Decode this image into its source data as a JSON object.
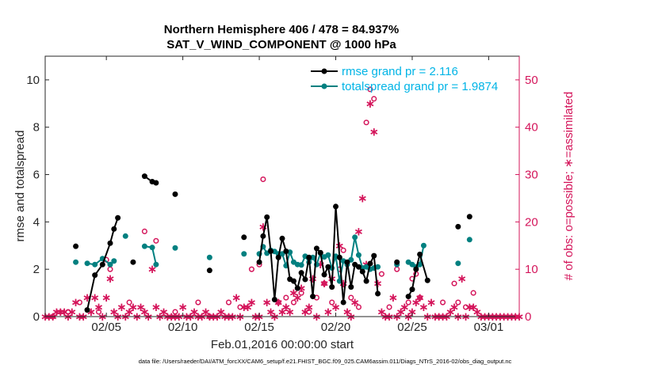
{
  "chart_data": {
    "type": "line",
    "title": "Northern Hemisphere 406 / 478 = 84.937%",
    "subtitle": "SAT_V_WIND_COMPONENT @ 1000 hPa",
    "xlabel": "Feb.01,2016 00:00:00 start",
    "ylabel": "rmse and totalspread",
    "y2label": "# of obs: o=possible; ∗=assimilated",
    "xlim": [
      1,
      32
    ],
    "ylim": [
      0,
      11
    ],
    "y2lim": [
      0,
      55
    ],
    "x_ticks": [
      5,
      10,
      15,
      20,
      25,
      30
    ],
    "x_tick_labels": [
      "02/05",
      "02/10",
      "02/15",
      "02/20",
      "02/25",
      "03/01"
    ],
    "y_ticks": [
      0,
      2,
      4,
      6,
      8,
      10
    ],
    "y2_ticks": [
      0,
      10,
      20,
      30,
      40,
      50
    ],
    "legend_position": "top-right",
    "footer": "data file: /Users/raeder/DAI/ATM_forcXX/CAM6_setup/f.e21.FHIST_BGC.f09_025.CAM6assim.011/Diags_NTrS_2016-02/obs_diag_output.nc",
    "colors": {
      "rmse": "#000000",
      "spread": "#008080",
      "obs": "#d4145a",
      "legend_text": "#00b4e6"
    },
    "series": [
      {
        "name": "rmse",
        "legend": "rmse grand pr = 2.116",
        "axis": "left",
        "x": [
          3.0,
          3.75,
          4.25,
          4.75,
          5.25,
          5.5,
          5.75,
          6.75,
          7.5,
          8.0,
          8.25,
          9.5,
          11.75,
          14.0,
          15.0,
          15.25,
          15.5,
          15.75,
          16.0,
          16.25,
          16.5,
          16.75,
          17.0,
          17.25,
          17.5,
          17.75,
          18.0,
          18.25,
          18.5,
          18.75,
          19.0,
          19.25,
          19.5,
          19.75,
          20.0,
          20.25,
          20.5,
          20.75,
          21.0,
          21.25,
          21.5,
          21.75,
          22.0,
          22.25,
          22.5,
          22.75,
          24.0,
          24.75,
          25.0,
          25.25,
          25.5,
          26.0,
          28.0,
          28.75
        ],
        "y": [
          2.97,
          0.28,
          1.75,
          2.2,
          3.1,
          3.7,
          4.17,
          2.3,
          5.93,
          5.7,
          5.65,
          5.17,
          1.95,
          3.35,
          2.3,
          3.4,
          4.2,
          2.76,
          0.72,
          2.5,
          3.3,
          2.76,
          1.58,
          1.5,
          1.2,
          1.85,
          1.57,
          2.5,
          0.85,
          2.88,
          2.7,
          1.77,
          2.1,
          1.25,
          4.65,
          2.5,
          0.6,
          2.3,
          1.25,
          2.2,
          2.1,
          1.9,
          1.5,
          2.24,
          2.57,
          0.97,
          2.3,
          0.85,
          1.15,
          2.0,
          2.63,
          1.53,
          3.8,
          4.22
        ]
      },
      {
        "name": "totalspread",
        "legend": "totalspread grand pr = 1.9874",
        "axis": "left",
        "x": [
          3.0,
          3.75,
          4.25,
          4.75,
          5.25,
          5.5,
          6.25,
          7.5,
          8.0,
          8.25,
          9.5,
          11.75,
          14.0,
          15.0,
          15.25,
          15.5,
          15.75,
          16.0,
          16.25,
          16.5,
          16.75,
          17.0,
          17.25,
          17.5,
          17.75,
          18.0,
          18.25,
          18.5,
          18.75,
          19.0,
          19.25,
          19.5,
          19.75,
          20.0,
          20.25,
          20.5,
          20.75,
          21.0,
          21.25,
          21.5,
          21.75,
          22.0,
          22.25,
          22.5,
          22.75,
          24.0,
          24.75,
          25.0,
          25.25,
          25.5,
          25.75,
          28.0,
          28.75
        ],
        "y": [
          2.3,
          2.25,
          2.2,
          2.45,
          2.2,
          2.35,
          3.4,
          2.97,
          2.92,
          2.2,
          2.9,
          2.5,
          2.65,
          2.65,
          2.95,
          2.68,
          2.8,
          2.75,
          2.65,
          2.65,
          2.15,
          2.72,
          2.3,
          2.2,
          2.18,
          2.55,
          2.3,
          2.5,
          2.2,
          2.68,
          2.52,
          2.6,
          2.05,
          2.55,
          1.5,
          2.35,
          2.2,
          2.4,
          3.35,
          2.6,
          2.05,
          2.1,
          2.0,
          2.05,
          2.1,
          2.2,
          2.3,
          2.2,
          2.1,
          2.2,
          3.0,
          2.25,
          3.25
        ]
      },
      {
        "name": "possible",
        "legend": "o=possible",
        "axis": "right",
        "x": [
          1.5,
          2.5,
          3.25,
          4.5,
          5.0,
          5.25,
          6.5,
          7.5,
          8.25,
          9.5,
          11.0,
          11.75,
          13.0,
          13.75,
          14.5,
          15.0,
          15.25,
          16.25,
          16.75,
          17.25,
          17.75,
          18.25,
          18.75,
          19.25,
          19.75,
          20.25,
          20.5,
          21.0,
          21.5,
          22.0,
          22.25,
          22.5,
          23.0,
          23.5,
          24.0,
          24.75,
          25.0,
          25.25,
          25.5,
          27.0,
          27.75,
          28.0,
          28.5,
          29.0
        ],
        "y": [
          0,
          1,
          3,
          1,
          12,
          10,
          3,
          18,
          16,
          1,
          3,
          0,
          3,
          2,
          10,
          11,
          29,
          3,
          4,
          3,
          5,
          1,
          4,
          7,
          3,
          10,
          14,
          4,
          2,
          41,
          48,
          46,
          9,
          2,
          10,
          3,
          8,
          9,
          4,
          3,
          7,
          3,
          2,
          5
        ]
      },
      {
        "name": "assimilated",
        "legend": "∗=assimilated",
        "axis": "right",
        "x": [
          1.0,
          1.25,
          1.5,
          1.75,
          2.0,
          2.25,
          2.5,
          2.75,
          3.0,
          3.25,
          3.5,
          3.75,
          4.0,
          4.25,
          4.5,
          4.75,
          5.0,
          5.25,
          5.5,
          5.75,
          6.0,
          6.25,
          6.5,
          6.75,
          7.0,
          7.25,
          7.5,
          7.75,
          8.0,
          8.25,
          8.5,
          8.75,
          9.0,
          9.25,
          9.5,
          9.75,
          10.0,
          10.25,
          10.5,
          10.75,
          11.0,
          11.25,
          11.5,
          11.75,
          12.0,
          12.25,
          12.5,
          12.75,
          13.0,
          13.25,
          13.5,
          13.75,
          14.0,
          14.25,
          14.5,
          14.75,
          15.0,
          15.25,
          15.5,
          15.75,
          16.0,
          16.25,
          16.5,
          16.75,
          17.0,
          17.25,
          17.5,
          17.75,
          18.0,
          18.25,
          18.5,
          18.75,
          19.0,
          19.25,
          19.5,
          19.75,
          20.0,
          20.25,
          20.5,
          20.75,
          21.0,
          21.25,
          21.5,
          21.75,
          22.0,
          22.25,
          22.5,
          22.75,
          23.0,
          23.25,
          23.5,
          23.75,
          24.0,
          24.25,
          24.5,
          24.75,
          25.0,
          25.25,
          25.5,
          25.75,
          26.0,
          26.25,
          26.5,
          26.75,
          27.0,
          27.25,
          27.5,
          27.75,
          28.0,
          28.25,
          28.5,
          28.75,
          29.0,
          29.25,
          29.5,
          29.75,
          30.0,
          30.25,
          30.5,
          30.75,
          31.0,
          31.25,
          31.5,
          31.75,
          32.0
        ],
        "y": [
          0,
          0,
          0,
          1,
          1,
          1,
          0,
          1,
          3,
          0,
          0,
          4,
          1,
          4,
          2,
          0,
          4,
          8,
          1,
          0,
          2,
          0,
          1,
          2,
          0,
          2,
          1,
          0,
          10,
          2,
          0,
          1,
          0,
          0,
          0,
          0,
          2,
          0,
          0,
          1,
          0,
          0,
          1,
          0,
          0,
          0,
          1,
          0,
          0,
          0,
          4,
          0,
          2,
          2,
          3,
          0,
          0,
          19,
          3,
          1,
          0,
          3,
          1,
          2,
          1,
          5,
          4,
          6,
          1,
          2,
          8,
          0,
          11,
          7,
          1,
          8,
          2,
          15,
          7,
          1,
          0,
          3,
          18,
          25,
          11,
          45,
          39,
          7,
          1,
          0,
          0,
          4,
          0,
          1,
          2,
          0,
          1,
          3,
          4,
          2,
          0,
          3,
          0,
          0,
          0,
          0,
          1,
          2,
          0,
          8,
          0,
          2,
          2,
          1,
          0,
          0,
          0,
          0,
          0,
          0,
          0,
          0,
          0,
          0,
          0
        ]
      }
    ]
  }
}
